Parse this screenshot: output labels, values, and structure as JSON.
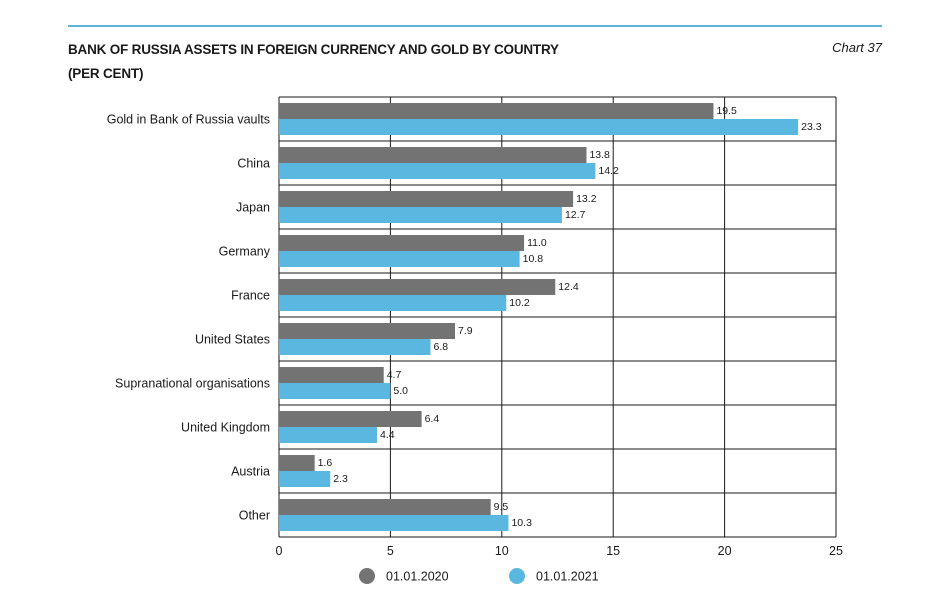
{
  "header": {
    "title_line1": "BANK OF RUSSIA ASSETS IN FOREIGN CURRENCY AND GOLD BY COUNTRY",
    "title_line2": "(PER CENT)",
    "chart_number": "Chart 37"
  },
  "chart_data": {
    "type": "bar",
    "orientation": "horizontal",
    "categories": [
      "Gold in Bank of Russia vaults",
      "China",
      "Japan",
      "Germany",
      "France",
      "United States",
      "Supranational organisations",
      "United Kingdom",
      "Austria",
      "Other"
    ],
    "series": [
      {
        "name": "01.01.2020",
        "color": "#737373",
        "values": [
          19.5,
          13.8,
          13.2,
          11.0,
          12.4,
          7.9,
          4.7,
          6.4,
          1.6,
          9.5
        ],
        "labels": [
          "19.5",
          "13.8",
          "13.2",
          "11.0",
          "12.4",
          "7.9",
          "4.7",
          "6.4",
          "1.6",
          "9.5"
        ]
      },
      {
        "name": "01.01.2021",
        "color": "#5ab8e0",
        "values": [
          23.3,
          14.2,
          12.7,
          10.8,
          10.2,
          6.8,
          5.0,
          4.4,
          2.3,
          10.3
        ],
        "labels": [
          "23.3",
          "14.2",
          "12.7",
          "10.8",
          "10.2",
          "6.8",
          "5.0",
          "4.4",
          "2.3",
          "10.3"
        ]
      }
    ],
    "xlim": [
      0,
      25
    ],
    "xticks": [
      0,
      5,
      10,
      15,
      20,
      25
    ],
    "grid": true,
    "legend_position": "bottom"
  }
}
